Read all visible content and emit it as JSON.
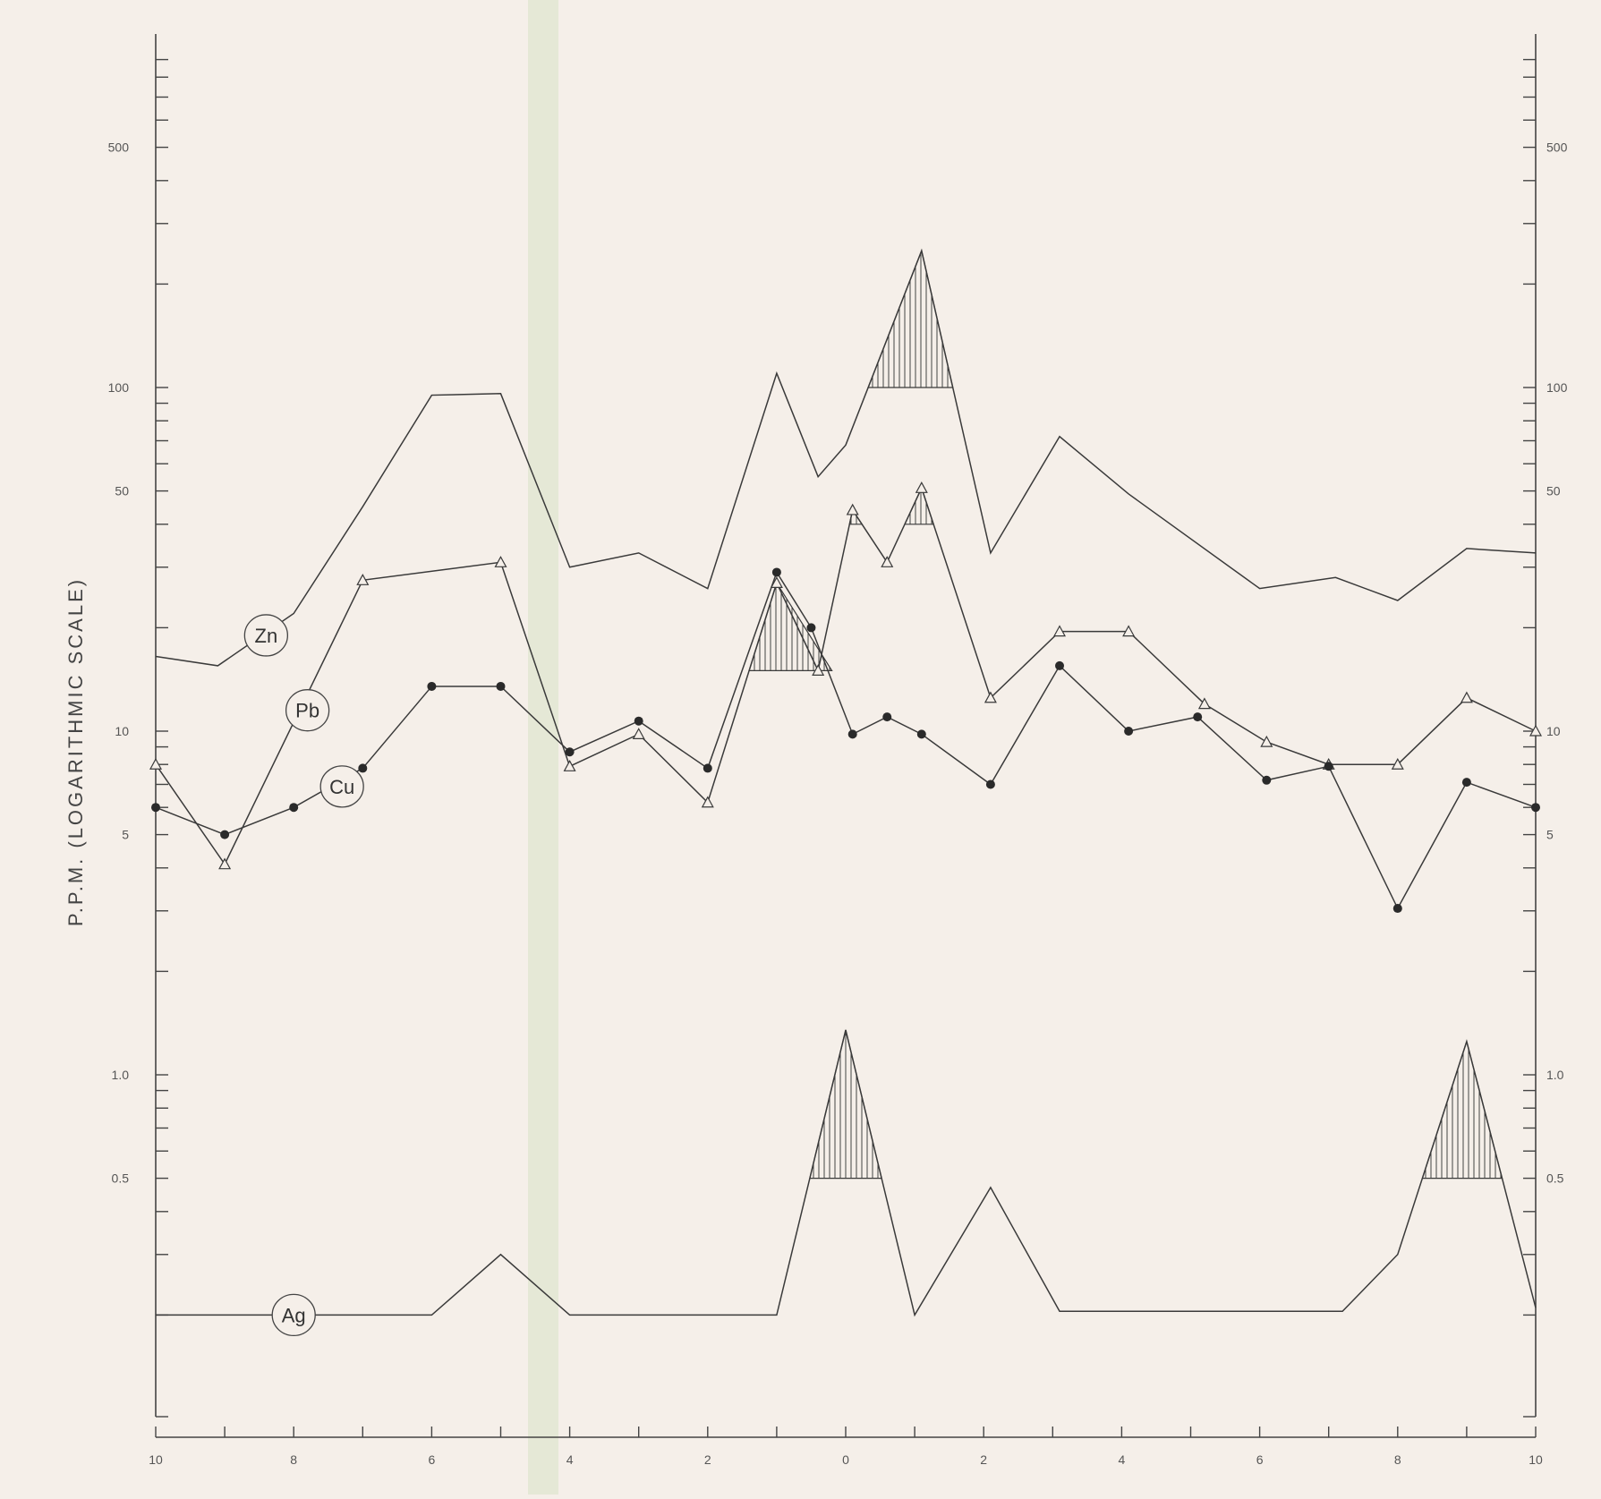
{
  "chart_data": {
    "type": "line",
    "title": "",
    "ylabel": "P.P.M. (LOGARITHMIC SCALE)",
    "xlabel": "",
    "y_scale": "log",
    "ylim": [
      0.1,
      1000
    ],
    "x_ticks": [
      -10,
      -9,
      -8,
      -7,
      -6,
      -5,
      -4,
      -3,
      -2,
      -1,
      0,
      1,
      2,
      3,
      4,
      5,
      6,
      7,
      8,
      9,
      10
    ],
    "x_tick_labels": [
      "10",
      "8",
      "6",
      "4",
      "2",
      "0",
      "2",
      "4",
      "6",
      "8",
      "10"
    ],
    "x_tick_label_positions": [
      -10,
      -8,
      -6,
      -4,
      -2,
      0,
      2,
      4,
      6,
      8,
      10
    ],
    "y_tick_labels_left": [
      "500",
      "100",
      "50",
      "10",
      "5",
      "1.0",
      "0.5"
    ],
    "y_tick_labels_right": [
      "500",
      "100",
      "50",
      "10",
      "5",
      "1.0",
      "0.5"
    ],
    "y_tick_label_values": [
      500,
      100,
      50,
      10,
      5,
      1.0,
      0.5
    ],
    "grid": false,
    "series": [
      {
        "name": "Zn",
        "marker": "none",
        "x": [
          -10,
          -9.1,
          -8,
          -7,
          -6,
          -5,
          -4,
          -3,
          -2,
          -1,
          -0.4,
          0,
          1.1,
          2.1,
          3.1,
          4.1,
          6,
          7.1,
          8,
          9,
          10
        ],
        "y": [
          16.5,
          15.5,
          22,
          45,
          95,
          96,
          30,
          33,
          26,
          110,
          55,
          68,
          250,
          33,
          72,
          49,
          26,
          28,
          24,
          34,
          33
        ]
      },
      {
        "name": "Pb",
        "marker": "triangle",
        "x": [
          -10,
          -9,
          -7,
          -5,
          -4,
          -3,
          -2,
          -1,
          -0.4,
          0.1,
          0.6,
          1.1,
          2.1,
          3.1,
          4.1,
          5.2,
          6.1,
          7,
          8,
          9,
          10
        ],
        "y": [
          8,
          4.1,
          27.5,
          31,
          7.9,
          9.8,
          6.2,
          27,
          15,
          44,
          31,
          51,
          12.5,
          19.5,
          19.5,
          12,
          9.3,
          8,
          8,
          12.5,
          10
        ]
      },
      {
        "name": "Cu",
        "marker": "dot",
        "x": [
          -10,
          -9,
          -8,
          -7,
          -6,
          -5,
          -4,
          -3,
          -2,
          -1,
          -0.5,
          0.1,
          0.6,
          1.1,
          2.1,
          3.1,
          4.1,
          5.1,
          6.1,
          7,
          8,
          9,
          10
        ],
        "y": [
          6,
          5,
          6,
          7.8,
          13.5,
          13.5,
          8.7,
          10.7,
          7.8,
          29,
          20,
          9.8,
          11,
          9.8,
          7,
          15.5,
          10,
          11,
          7.2,
          7.9,
          3.05,
          7.1,
          6
        ]
      },
      {
        "name": "Ag",
        "marker": "none",
        "x": [
          -10,
          -6,
          -5,
          -4,
          -1,
          0,
          1,
          2.1,
          3.1,
          7.2,
          8,
          9,
          10
        ],
        "y": [
          0.2,
          0.2,
          0.3,
          0.2,
          0.2,
          1.35,
          0.2,
          0.47,
          0.205,
          0.205,
          0.3,
          1.25,
          0.21
        ]
      }
    ],
    "hatched_anomalies": [
      {
        "series": "Zn",
        "threshold": 100,
        "x_range": [
          0.5,
          1.6
        ],
        "peak_x": 1.1,
        "peak_y": 250
      },
      {
        "series": "Pb",
        "threshold": 15,
        "x_range": [
          -1.4,
          -0.2
        ],
        "peak_x": -1,
        "peak_y": 27
      },
      {
        "series": "Pb",
        "threshold": 40,
        "x_range": [
          -0.05,
          0.2
        ],
        "peak_x": 0.1,
        "peak_y": 44
      },
      {
        "series": "Pb",
        "threshold": 40,
        "x_range": [
          0.8,
          1.3
        ],
        "peak_x": 1.1,
        "peak_y": 51
      },
      {
        "series": "Ag",
        "threshold": 0.5,
        "x_range": [
          -0.45,
          0.5
        ],
        "peak_x": 0,
        "peak_y": 1.35
      },
      {
        "series": "Ag",
        "threshold": 0.5,
        "x_range": [
          8.4,
          9.5
        ],
        "peak_x": 9,
        "peak_y": 1.25
      }
    ],
    "series_labels": [
      {
        "name": "Zn",
        "x": -8.4,
        "y": 19
      },
      {
        "name": "Pb",
        "x": -7.8,
        "y": 11.5
      },
      {
        "name": "Cu",
        "x": -7.3,
        "y": 6.9
      },
      {
        "name": "Ag",
        "x": -8,
        "y": 0.2
      }
    ]
  }
}
